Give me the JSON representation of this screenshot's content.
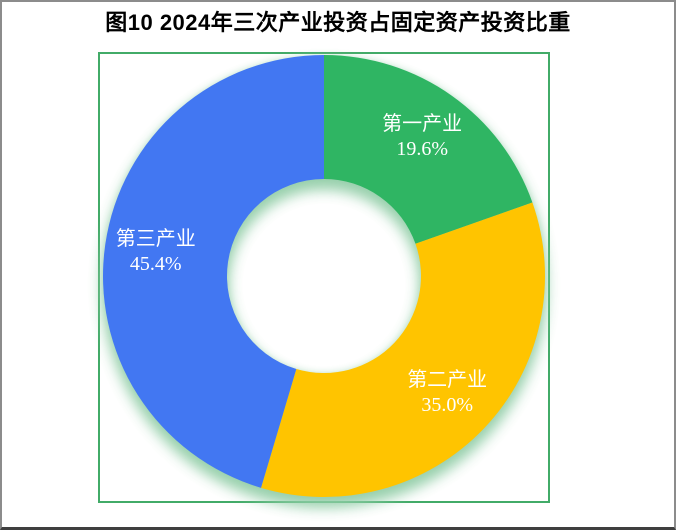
{
  "page": {
    "background": "#ffffff",
    "outer_border_color": "#8c8c8c"
  },
  "chart_data": {
    "type": "pie",
    "subtype": "donut",
    "title": "图10 2024年三次产业投资占固定资产投资比重",
    "categories": [
      "第一产业",
      "第二产业",
      "第三产业"
    ],
    "values": [
      19.6,
      35.0,
      45.4
    ],
    "series": [
      {
        "name": "第一产业",
        "value": 19.6,
        "label": "19.6%",
        "color": "#2fb563"
      },
      {
        "name": "第二产业",
        "value": 35.0,
        "label": "35.0%",
        "color": "#ffc400"
      },
      {
        "name": "第三产业",
        "value": 45.4,
        "label": "45.4%",
        "color": "#4277f2"
      }
    ],
    "start_angle": "top",
    "direction": "clockwise",
    "legend": "none",
    "data_labels": "inside slices: category name + percent, white text",
    "plot_border_color": "#42ab68",
    "glow_color": "#92cea8",
    "hole_fill": "#ffffff"
  }
}
